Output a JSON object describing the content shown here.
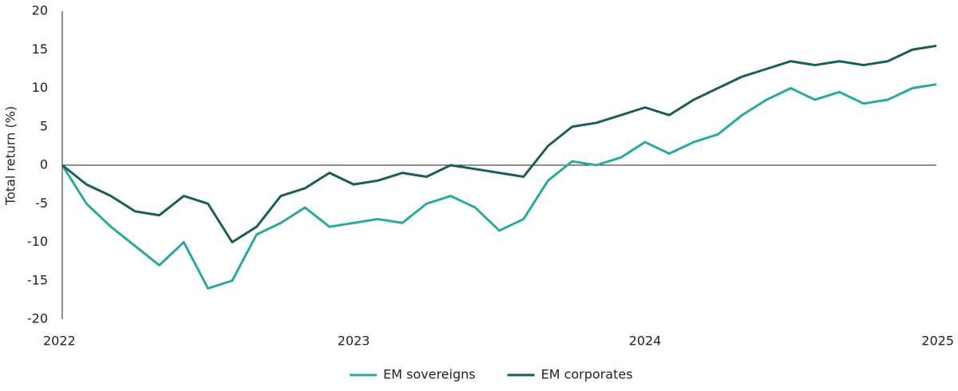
{
  "chart_data": {
    "type": "line",
    "y_label": "Total return (%)",
    "x": [
      2022,
      2022.083,
      2022.167,
      2022.25,
      2022.333,
      2022.417,
      2022.5,
      2022.583,
      2022.667,
      2022.75,
      2022.833,
      2022.917,
      2023,
      2023.083,
      2023.167,
      2023.25,
      2023.333,
      2023.417,
      2023.5,
      2023.583,
      2023.667,
      2023.75,
      2023.833,
      2023.917,
      2024,
      2024.083,
      2024.167,
      2024.25,
      2024.333,
      2024.417,
      2024.5,
      2024.583,
      2024.667,
      2024.75,
      2024.833,
      2024.917,
      2025
    ],
    "series": [
      {
        "name": "EM sovereigns",
        "color": "#2aa99c",
        "values": [
          0,
          -5,
          -8,
          -10.5,
          -13,
          -10,
          -16,
          -15,
          -9,
          -7.5,
          -5.5,
          -8,
          -7.5,
          -7,
          -7.5,
          -5,
          -4,
          -5.5,
          -8.5,
          -7,
          -2,
          0.5,
          0,
          1,
          3,
          1.5,
          3,
          4,
          6.5,
          8.5,
          10,
          8.5,
          9.5,
          8,
          8.5,
          10,
          10.5
        ]
      },
      {
        "name": "EM corporates",
        "color": "#1b5e57",
        "values": [
          0,
          -2.5,
          -4,
          -6,
          -6.5,
          -4,
          -5,
          -10,
          -8,
          -4,
          -3,
          -1,
          -2.5,
          -2,
          -1,
          -1.5,
          0,
          -0.5,
          -1,
          -1.5,
          2.5,
          5,
          5.5,
          6.5,
          7.5,
          6.5,
          8.5,
          10,
          11.5,
          12.5,
          13.5,
          13,
          13.5,
          13,
          13.5,
          15,
          15.5
        ]
      }
    ],
    "xlim": [
      2022,
      2025
    ],
    "xticks": [
      2022,
      2023,
      2024,
      2025
    ],
    "ylim": [
      -20,
      20
    ],
    "yticks": [
      -20,
      -15,
      -10,
      -5,
      0,
      5,
      10,
      15,
      20
    ],
    "legend": "bottom"
  }
}
